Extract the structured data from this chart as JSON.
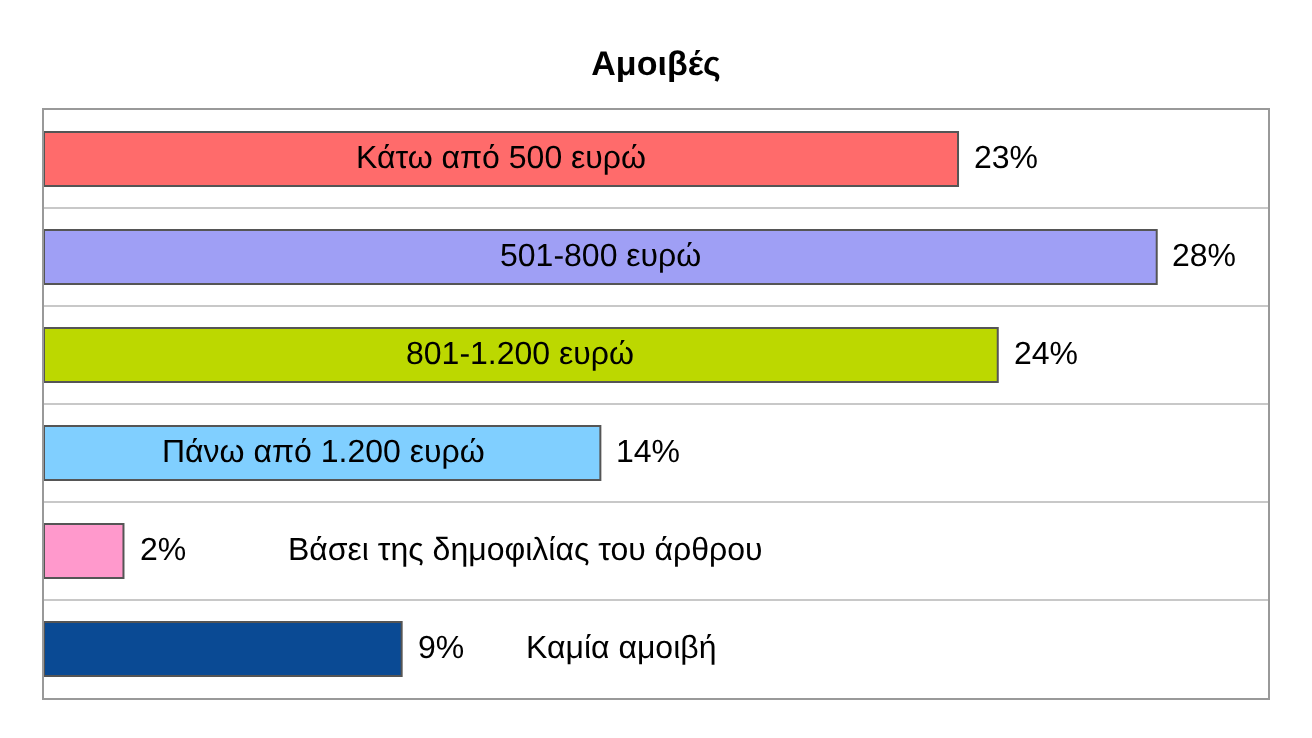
{
  "chart_data": {
    "type": "bar",
    "orientation": "horizontal",
    "title": "Αμοιβές",
    "categories": [
      "Κάτω από 500 ευρώ",
      "501-800 ευρώ",
      "801-1.200 ευρώ",
      "Πάνω από 1.200 ευρώ",
      "Βάσει της δημοφιλίας του άρθρου",
      "Καμία αμοιβή"
    ],
    "values": [
      23,
      28,
      24,
      14,
      2,
      9
    ],
    "value_labels": [
      "23%",
      "28%",
      "24%",
      "14%",
      "2%",
      "9%"
    ],
    "colors": [
      "#ff6b6b",
      "#9f9ff5",
      "#bcd800",
      "#80cfff",
      "#ff99cc",
      "#0a4a94"
    ],
    "grid": "y",
    "legend": false,
    "tick_labels": false
  }
}
